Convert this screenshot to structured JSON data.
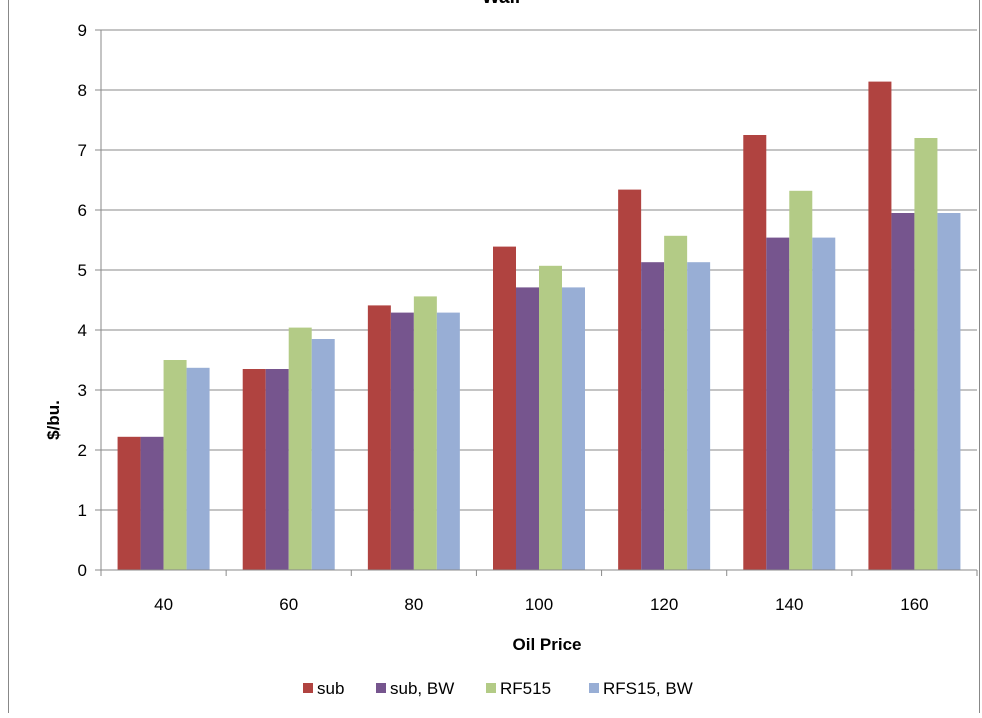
{
  "chart_data": {
    "type": "bar",
    "title": "Wall",
    "xlabel": "Oil Price",
    "ylabel": "$/bu.",
    "categories": [
      "40",
      "60",
      "80",
      "100",
      "120",
      "140",
      "160"
    ],
    "ylim": [
      0,
      9
    ],
    "yticks": [
      "0",
      "1",
      "2",
      "3",
      "4",
      "5",
      "6",
      "7",
      "8",
      "9"
    ],
    "grid": true,
    "legend_position": "bottom",
    "series": [
      {
        "name": "sub",
        "color": "#B04340",
        "values": [
          2.22,
          3.35,
          4.41,
          5.39,
          6.34,
          7.25,
          8.14
        ]
      },
      {
        "name": "sub, BW",
        "color": "#76558E",
        "values": [
          2.22,
          3.35,
          4.29,
          4.71,
          5.13,
          5.54,
          5.95
        ]
      },
      {
        "name": "RF515",
        "color": "#B3CB86",
        "values": [
          3.5,
          4.04,
          4.56,
          5.07,
          5.57,
          6.32,
          7.2
        ]
      },
      {
        "name": "RFS15, BW",
        "color": "#98AED5",
        "values": [
          3.37,
          3.85,
          4.29,
          4.71,
          5.13,
          5.54,
          5.95
        ]
      }
    ]
  }
}
